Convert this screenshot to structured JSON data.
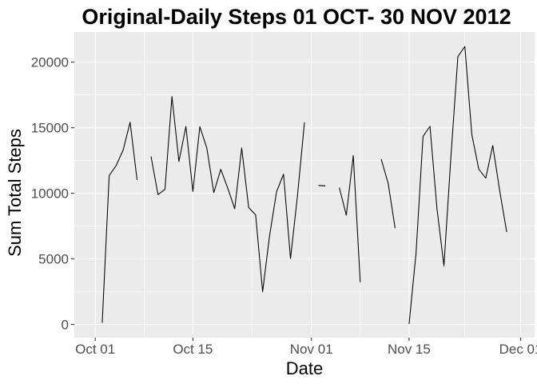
{
  "chart_data": {
    "type": "line",
    "title": "Original-Daily Steps 01 OCT- 30 NOV 2012",
    "xlabel": "Date",
    "ylabel": "Sum Total Steps",
    "x_range": [
      "2012-09-28",
      "2012-12-03"
    ],
    "ylim": [
      -1000,
      22300
    ],
    "grid": true,
    "legend": "none",
    "x_ticks": [
      {
        "date": "2012-10-01",
        "label": "Oct 01"
      },
      {
        "date": "2012-10-15",
        "label": "Oct 15"
      },
      {
        "date": "2012-11-01",
        "label": "Nov 01"
      },
      {
        "date": "2012-11-15",
        "label": "Nov 15"
      },
      {
        "date": "2012-12-01",
        "label": "Dec 01"
      }
    ],
    "y_ticks": [
      {
        "value": 0,
        "label": "0"
      },
      {
        "value": 5000,
        "label": "5000"
      },
      {
        "value": 10000,
        "label": "10000"
      },
      {
        "value": 15000,
        "label": "15000"
      },
      {
        "value": 20000,
        "label": "20000"
      }
    ],
    "series": [
      {
        "color": "#000000",
        "points": [
          [
            "2012-10-01",
            null
          ],
          [
            "2012-10-02",
            126
          ],
          [
            "2012-10-03",
            11352
          ],
          [
            "2012-10-04",
            12116
          ],
          [
            "2012-10-05",
            13294
          ],
          [
            "2012-10-06",
            15420
          ],
          [
            "2012-10-07",
            11015
          ],
          [
            "2012-10-08",
            null
          ],
          [
            "2012-10-09",
            12811
          ],
          [
            "2012-10-10",
            9900
          ],
          [
            "2012-10-11",
            10304
          ],
          [
            "2012-10-12",
            17382
          ],
          [
            "2012-10-13",
            12426
          ],
          [
            "2012-10-14",
            15098
          ],
          [
            "2012-10-15",
            10139
          ],
          [
            "2012-10-16",
            15084
          ],
          [
            "2012-10-17",
            13452
          ],
          [
            "2012-10-18",
            10056
          ],
          [
            "2012-10-19",
            11829
          ],
          [
            "2012-10-20",
            10395
          ],
          [
            "2012-10-21",
            8821
          ],
          [
            "2012-10-22",
            13460
          ],
          [
            "2012-10-23",
            8918
          ],
          [
            "2012-10-24",
            8355
          ],
          [
            "2012-10-25",
            2492
          ],
          [
            "2012-10-26",
            6778
          ],
          [
            "2012-10-27",
            10119
          ],
          [
            "2012-10-28",
            11458
          ],
          [
            "2012-10-29",
            5018
          ],
          [
            "2012-10-30",
            9819
          ],
          [
            "2012-10-31",
            15414
          ],
          [
            "2012-11-01",
            null
          ],
          [
            "2012-11-02",
            10600
          ],
          [
            "2012-11-03",
            10571
          ],
          [
            "2012-11-04",
            null
          ],
          [
            "2012-11-05",
            10439
          ],
          [
            "2012-11-06",
            8334
          ],
          [
            "2012-11-07",
            12883
          ],
          [
            "2012-11-08",
            3219
          ],
          [
            "2012-11-09",
            null
          ],
          [
            "2012-11-10",
            null
          ],
          [
            "2012-11-11",
            12608
          ],
          [
            "2012-11-12",
            10765
          ],
          [
            "2012-11-13",
            7336
          ],
          [
            "2012-11-14",
            null
          ],
          [
            "2012-11-15",
            41
          ],
          [
            "2012-11-16",
            5441
          ],
          [
            "2012-11-17",
            14339
          ],
          [
            "2012-11-18",
            15110
          ],
          [
            "2012-11-19",
            8841
          ],
          [
            "2012-11-20",
            4472
          ],
          [
            "2012-11-21",
            12787
          ],
          [
            "2012-11-22",
            20427
          ],
          [
            "2012-11-23",
            21194
          ],
          [
            "2012-11-24",
            14478
          ],
          [
            "2012-11-25",
            11834
          ],
          [
            "2012-11-26",
            11162
          ],
          [
            "2012-11-27",
            13646
          ],
          [
            "2012-11-28",
            10183
          ],
          [
            "2012-11-29",
            7047
          ],
          [
            "2012-11-30",
            null
          ]
        ]
      }
    ]
  }
}
